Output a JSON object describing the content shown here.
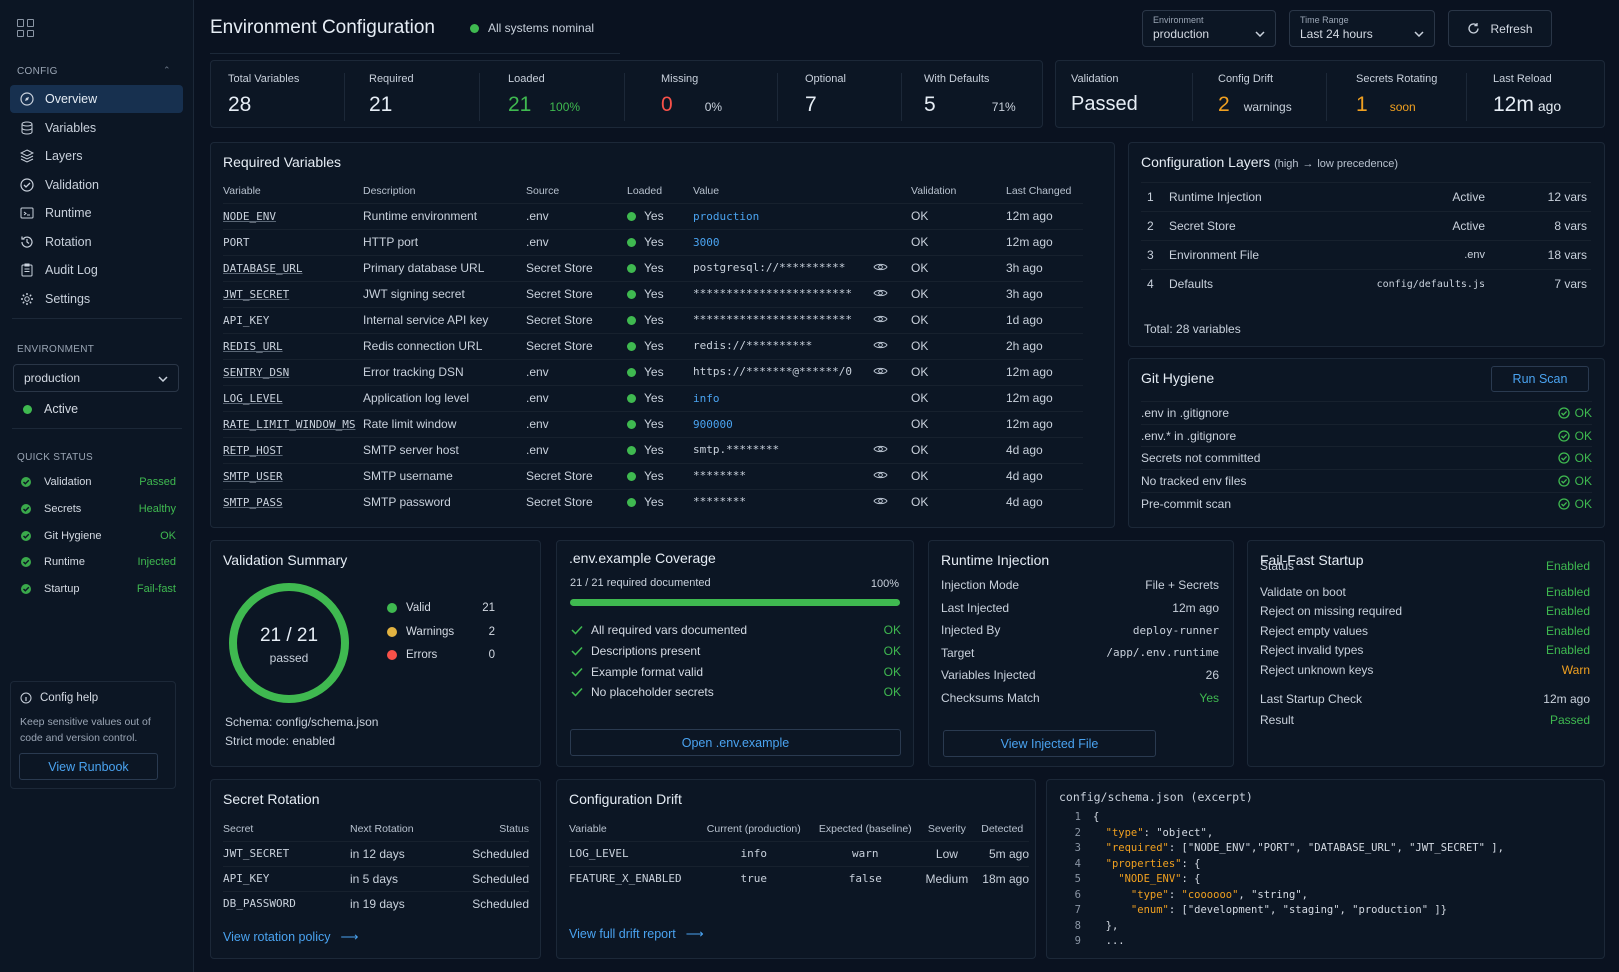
{
  "header": {
    "title": "Environment Configuration",
    "status": "All systems nominal",
    "env_label": "Environment",
    "env_value": "production",
    "time_label": "Time Range",
    "time_value": "Last 24 hours",
    "refresh": "Refresh"
  },
  "sidebar": {
    "config_head": "CONFIG",
    "items": [
      {
        "label": "Overview",
        "icon": "compass-icon"
      },
      {
        "label": "Variables",
        "icon": "database-icon"
      },
      {
        "label": "Layers",
        "icon": "layers-icon"
      },
      {
        "label": "Validation",
        "icon": "check-circle-icon"
      },
      {
        "label": "Runtime",
        "icon": "terminal-icon"
      },
      {
        "label": "Rotation",
        "icon": "history-icon"
      },
      {
        "label": "Audit Log",
        "icon": "clipboard-icon"
      },
      {
        "label": "Settings",
        "icon": "gear-icon"
      }
    ],
    "env_head": "ENVIRONMENT",
    "env_value": "production",
    "env_status": "Active",
    "qs_head": "QUICK STATUS",
    "quick_status": [
      {
        "label": "Validation",
        "value": "Passed"
      },
      {
        "label": "Secrets",
        "value": "Healthy"
      },
      {
        "label": "Git Hygiene",
        "value": "OK"
      },
      {
        "label": "Runtime",
        "value": "Injected"
      },
      {
        "label": "Startup",
        "value": "Fail-fast"
      }
    ],
    "help_title": "Config help",
    "help_text": "Keep sensitive values out of code and version control.",
    "help_button": "View Runbook"
  },
  "stats": {
    "total": {
      "label": "Total Variables",
      "value": "28"
    },
    "required": {
      "label": "Required",
      "value": "21"
    },
    "loaded": {
      "label": "Loaded",
      "value": "21",
      "pct": "100%"
    },
    "missing": {
      "label": "Missing",
      "value": "0",
      "pct": "0%"
    },
    "optional": {
      "label": "Optional",
      "value": "7"
    },
    "defaults": {
      "label": "With Defaults",
      "value": "5",
      "pct": "71%"
    },
    "validation": {
      "label": "Validation",
      "value": "Passed"
    },
    "drift": {
      "label": "Config Drift",
      "value": "2",
      "sub": "warnings"
    },
    "rotating": {
      "label": "Secrets Rotating",
      "value": "1",
      "sub": "soon"
    },
    "reload": {
      "label": "Last Reload",
      "value": "12m",
      "sub": "ago"
    }
  },
  "required_vars": {
    "title": "Required Variables",
    "columns": [
      "Variable",
      "Description",
      "Source",
      "Loaded",
      "Value",
      "Validation",
      "Last Changed"
    ],
    "rows": [
      {
        "name": "NODE_ENV",
        "desc": "Runtime environment",
        "source": ".env",
        "loaded": "Yes",
        "value": "production",
        "vblue": true,
        "eye": false,
        "valid": "OK",
        "changed": "12m ago",
        "ul": true
      },
      {
        "name": "PORT",
        "desc": "HTTP port",
        "source": ".env",
        "loaded": "Yes",
        "value": "3000",
        "vblue": true,
        "eye": false,
        "valid": "OK",
        "changed": "12m ago",
        "ul": false
      },
      {
        "name": "DATABASE_URL",
        "desc": "Primary database URL",
        "source": "Secret Store",
        "loaded": "Yes",
        "value": "postgresql://**********",
        "vblue": false,
        "eye": true,
        "valid": "OK",
        "changed": "3h ago",
        "ul": true
      },
      {
        "name": "JWT_SECRET",
        "desc": "JWT signing secret",
        "source": "Secret Store",
        "loaded": "Yes",
        "value": "************************",
        "vblue": false,
        "eye": true,
        "valid": "OK",
        "changed": "3h ago",
        "ul": true
      },
      {
        "name": "API_KEY",
        "desc": "Internal service API key",
        "source": "Secret Store",
        "loaded": "Yes",
        "value": "************************",
        "vblue": false,
        "eye": true,
        "valid": "OK",
        "changed": "1d ago",
        "ul": false
      },
      {
        "name": "REDIS_URL",
        "desc": "Redis connection URL",
        "source": "Secret Store",
        "loaded": "Yes",
        "value": "redis://**********",
        "vblue": false,
        "eye": true,
        "valid": "OK",
        "changed": "2h ago",
        "ul": true
      },
      {
        "name": "SENTRY_DSN",
        "desc": "Error tracking DSN",
        "source": ".env",
        "loaded": "Yes",
        "value": "https://*******@******/0",
        "vblue": false,
        "eye": true,
        "valid": "OK",
        "changed": "12m ago",
        "ul": true
      },
      {
        "name": "LOG_LEVEL",
        "desc": "Application log level",
        "source": ".env",
        "loaded": "Yes",
        "value": "info",
        "vblue": true,
        "eye": false,
        "valid": "OK",
        "changed": "12m ago",
        "ul": true
      },
      {
        "name": "RATE_LIMIT_WINDOW_MS",
        "desc": "Rate limit window",
        "source": ".env",
        "loaded": "Yes",
        "value": "900000",
        "vblue": true,
        "eye": false,
        "valid": "OK",
        "changed": "12m ago",
        "ul": true
      },
      {
        "name": "RETP_HOST",
        "desc": "SMTP server host",
        "source": ".env",
        "loaded": "Yes",
        "value": "smtp.********",
        "vblue": false,
        "eye": true,
        "valid": "OK",
        "changed": "4d ago",
        "ul": true
      },
      {
        "name": "SMTP_USER",
        "desc": "SMTP username",
        "source": "Secret Store",
        "loaded": "Yes",
        "value": "********",
        "vblue": false,
        "eye": true,
        "valid": "OK",
        "changed": "4d ago",
        "ul": true
      },
      {
        "name": "SMTP_PASS",
        "desc": "SMTP password",
        "source": "Secret Store",
        "loaded": "Yes",
        "value": "********",
        "vblue": false,
        "eye": true,
        "valid": "OK",
        "changed": "4d ago",
        "ul": true
      }
    ]
  },
  "layers": {
    "title": "Configuration Layers",
    "subtitle": "(high",
    "arrow": "→",
    "subtitle2": "low precedence)",
    "rows": [
      {
        "n": "1",
        "name": "Runtime Injection",
        "state": "Active",
        "count": "12 vars"
      },
      {
        "n": "2",
        "name": "Secret Store",
        "state": "Active",
        "count": "8 vars"
      },
      {
        "n": "3",
        "name": "Environment File",
        "state": ".env",
        "count": "18 vars"
      },
      {
        "n": "4",
        "name": "Defaults",
        "state": "config/defaults.js",
        "count": "7 vars"
      }
    ],
    "total": "Total: 28 variables"
  },
  "git": {
    "title": "Git Hygiene",
    "button": "Run Scan",
    "rows": [
      {
        "label": ".env in .gitignore",
        "v": "OK"
      },
      {
        "label": ".env.* in .gitignore",
        "v": "OK"
      },
      {
        "label": "Secrets not committed",
        "v": "OK"
      },
      {
        "label": "No tracked env files",
        "v": "OK"
      },
      {
        "label": "Pre-commit scan",
        "v": "OK"
      }
    ]
  },
  "validation_summary": {
    "title": "Validation Summary",
    "ring_main": "21 / 21",
    "ring_sub": "passed",
    "progress": 1.0,
    "legend": [
      {
        "label": "Valid",
        "value": "21",
        "color": "#3fb950"
      },
      {
        "label": "Warnings",
        "value": "2",
        "color": "#e3b341"
      },
      {
        "label": "Errors",
        "value": "0",
        "color": "#f85149"
      }
    ],
    "schema": "Schema: config/schema.json",
    "strict": "Strict mode: enabled"
  },
  "coverage": {
    "title": ".env.example Coverage",
    "summary": "21 / 21 required documented",
    "pct": "100%",
    "fill": 1.0,
    "checks": [
      {
        "label": "All required vars documented",
        "v": "OK"
      },
      {
        "label": "Descriptions present",
        "v": "OK"
      },
      {
        "label": "Example format valid",
        "v": "OK"
      },
      {
        "label": "No placeholder secrets",
        "v": "OK"
      }
    ],
    "button": "Open .env.example"
  },
  "runtime": {
    "title": "Runtime Injection",
    "rows": [
      {
        "k": "Injection Mode",
        "v": "File + Secrets",
        "mono": false
      },
      {
        "k": "Last Injected",
        "v": "12m ago",
        "mono": false
      },
      {
        "k": "Injected By",
        "v": "deploy-runner",
        "mono": true
      },
      {
        "k": "Target",
        "v": "/app/.env.runtime",
        "mono": true
      },
      {
        "k": "Variables Injected",
        "v": "26",
        "mono": false
      },
      {
        "k": "Checksums Match",
        "v": "Yes",
        "mono": false,
        "green": true
      }
    ],
    "button": "View Injected File"
  },
  "failfast": {
    "title": "Fail-Fast Startup",
    "rows": [
      {
        "k": "Status",
        "v": "Enabled",
        "c": "green"
      },
      {
        "k": "Validate on boot",
        "v": "Enabled",
        "c": "green"
      },
      {
        "k": "Reject on missing required",
        "v": "Enabled",
        "c": "green"
      },
      {
        "k": "Reject empty values",
        "v": "Enabled",
        "c": "green"
      },
      {
        "k": "Reject invalid types",
        "v": "Enabled",
        "c": "green"
      },
      {
        "k": "Reject unknown keys",
        "v": "Warn",
        "c": "orange"
      },
      {
        "k": "Last Startup Check",
        "v": "12m ago",
        "c": ""
      },
      {
        "k": "Result",
        "v": "Passed",
        "c": "green"
      }
    ]
  },
  "rotation": {
    "title": "Secret Rotation",
    "columns": [
      "Secret",
      "Next Rotation",
      "Status"
    ],
    "rows": [
      {
        "s": "JWT_SECRET",
        "n": "in 12 days",
        "st": "Scheduled"
      },
      {
        "s": "API_KEY",
        "n": "in 5 days",
        "st": "Scheduled"
      },
      {
        "s": "DB_PASSWORD",
        "n": "in 19 days",
        "st": "Scheduled"
      }
    ],
    "link": "View rotation policy"
  },
  "drift": {
    "title": "Configuration Drift",
    "columns": [
      "Variable",
      "Current (production)",
      "Expected (baseline)",
      "Severity",
      "Detected"
    ],
    "rows": [
      {
        "v": "LOG_LEVEL",
        "c": "info",
        "e": "warn",
        "s": "Low",
        "d": "5m ago"
      },
      {
        "v": "FEATURE_X_ENABLED",
        "c": "true",
        "e": "false",
        "s": "Medium",
        "d": "18m ago"
      }
    ],
    "link": "View full drift report"
  },
  "schema": {
    "title": "config/schema.json (excerpt)",
    "lines": [
      [
        {
          "t": "{",
          "c": "w"
        }
      ],
      [
        {
          "t": "  \"type\"",
          "c": "o"
        },
        {
          "t": ": ",
          "c": "w"
        },
        {
          "t": "\"object\"",
          "c": "w"
        },
        {
          "t": ",",
          "c": "w"
        }
      ],
      [
        {
          "t": "  \"required\"",
          "c": "o"
        },
        {
          "t": ": [",
          "c": "w"
        },
        {
          "t": "\"NODE_ENV\",\"PORT\", \"DATABASE_URL\", \"JWT_SECRET\"",
          "c": "w"
        },
        {
          "t": " ],",
          "c": "w"
        }
      ],
      [
        {
          "t": "  \"properties\"",
          "c": "o"
        },
        {
          "t": ": {",
          "c": "w"
        }
      ],
      [
        {
          "t": "    \"NODE_ENV\"",
          "c": "o"
        },
        {
          "t": ": {",
          "c": "w"
        }
      ],
      [
        {
          "t": "      \"type\"",
          "c": "o"
        },
        {
          "t": ": ",
          "c": "w"
        },
        {
          "t": "\"coooooo\"",
          "c": "o"
        },
        {
          "t": ", \"string\",",
          "c": "w"
        }
      ],
      [
        {
          "t": "      \"enum\"",
          "c": "o"
        },
        {
          "t": ": [\"development\", \"staging\", \"production\" ]}",
          "c": "w"
        }
      ],
      [
        {
          "t": "  },",
          "c": "w"
        }
      ],
      [
        {
          "t": "  ...",
          "c": "w"
        }
      ]
    ]
  }
}
